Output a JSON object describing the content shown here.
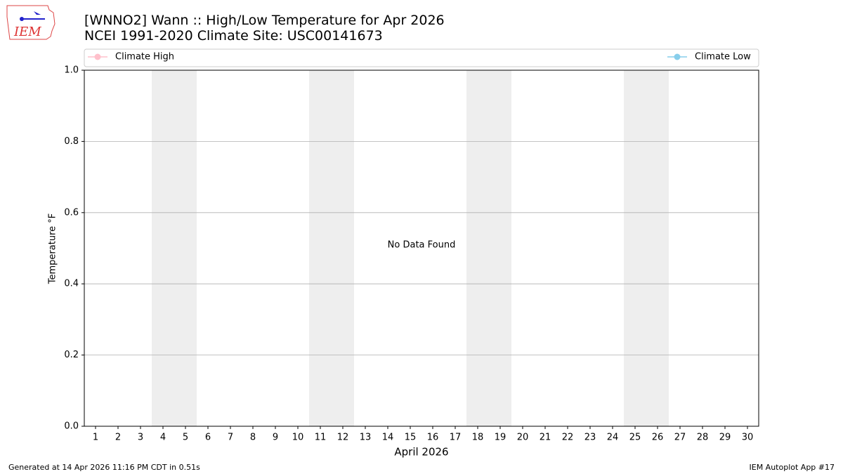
{
  "chart_data": {
    "type": "line",
    "title": "[WNNO2] Wann :: High/Low Temperature for Apr 2026",
    "subtitle": "NCEI 1991-2020 Climate Site: USC00141673",
    "x_label": "April 2026",
    "y_label": "Temperature °F",
    "annotation": "No Data Found",
    "logo_text": "IEM",
    "footer_left": "Generated at 14 Apr 2026 11:16 PM CDT in 0.51s",
    "footer_right": "IEM Autoplot App #17",
    "x": [
      1,
      2,
      3,
      4,
      5,
      6,
      7,
      8,
      9,
      10,
      11,
      12,
      13,
      14,
      15,
      16,
      17,
      18,
      19,
      20,
      21,
      22,
      23,
      24,
      25,
      26,
      27,
      28,
      29,
      30
    ],
    "series": [
      {
        "name": "Climate High",
        "color": "pink",
        "values": [
          null,
          null,
          null,
          null,
          null,
          null,
          null,
          null,
          null,
          null,
          null,
          null,
          null,
          null,
          null,
          null,
          null,
          null,
          null,
          null,
          null,
          null,
          null,
          null,
          null,
          null,
          null,
          null,
          null,
          null
        ]
      },
      {
        "name": "Climate Low",
        "color": "skyblue",
        "values": [
          null,
          null,
          null,
          null,
          null,
          null,
          null,
          null,
          null,
          null,
          null,
          null,
          null,
          null,
          null,
          null,
          null,
          null,
          null,
          null,
          null,
          null,
          null,
          null,
          null,
          null,
          null,
          null,
          null,
          null
        ]
      }
    ],
    "xlim": [
      0.5,
      30.5
    ],
    "xticks": [
      1,
      2,
      3,
      4,
      5,
      6,
      7,
      8,
      9,
      10,
      11,
      12,
      13,
      14,
      15,
      16,
      17,
      18,
      19,
      20,
      21,
      22,
      23,
      24,
      25,
      26,
      27,
      28,
      29,
      30
    ],
    "ylim": [
      0,
      1
    ],
    "yticks": [
      {
        "value": 0,
        "label": "0.0"
      },
      0.2,
      0.4,
      0.6,
      0.8,
      {
        "value": 1,
        "label": "1.0"
      }
    ],
    "shaded_x": [
      [
        3.5,
        5.5
      ],
      [
        10.5,
        12.5
      ],
      [
        17.5,
        19.5
      ],
      [
        24.5,
        26.5
      ]
    ],
    "shade_color": "#eeeeee",
    "grid": true
  }
}
